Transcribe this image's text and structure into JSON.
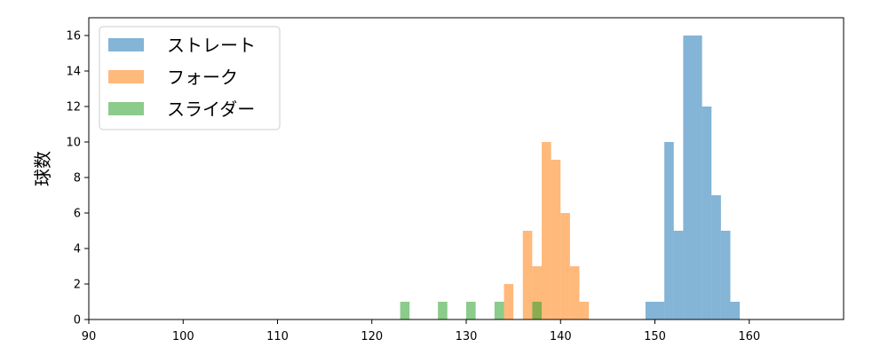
{
  "chart_data": {
    "type": "bar",
    "title": "",
    "xlabel": "",
    "ylabel": "球数",
    "xlim": [
      90,
      170
    ],
    "ylim": [
      0,
      17
    ],
    "x_ticks": [
      "90",
      "100",
      "110",
      "120",
      "130",
      "140",
      "150",
      "160"
    ],
    "y_ticks": [
      "0",
      "2",
      "4",
      "6",
      "8",
      "10",
      "12",
      "14",
      "16"
    ],
    "legend_position": "top-left",
    "grid": false,
    "bin_width": 1,
    "series": [
      {
        "name": "ストレート",
        "color": "#1f77b4",
        "bins": [
          {
            "x": 149,
            "count": 1
          },
          {
            "x": 150,
            "count": 1
          },
          {
            "x": 151,
            "count": 10
          },
          {
            "x": 152,
            "count": 5
          },
          {
            "x": 153,
            "count": 16
          },
          {
            "x": 154,
            "count": 16
          },
          {
            "x": 155,
            "count": 12
          },
          {
            "x": 156,
            "count": 7
          },
          {
            "x": 157,
            "count": 5
          },
          {
            "x": 158,
            "count": 1
          }
        ]
      },
      {
        "name": "フォーク",
        "color": "#ff7f0e",
        "bins": [
          {
            "x": 134,
            "count": 2
          },
          {
            "x": 136,
            "count": 5
          },
          {
            "x": 137,
            "count": 3
          },
          {
            "x": 138,
            "count": 10
          },
          {
            "x": 139,
            "count": 9
          },
          {
            "x": 140,
            "count": 6
          },
          {
            "x": 141,
            "count": 3
          },
          {
            "x": 142,
            "count": 1
          }
        ]
      },
      {
        "name": "スライダー",
        "color": "#2ca02c",
        "bins": [
          {
            "x": 123,
            "count": 1
          },
          {
            "x": 127,
            "count": 1
          },
          {
            "x": 130,
            "count": 1
          },
          {
            "x": 133,
            "count": 1
          },
          {
            "x": 137,
            "count": 1
          }
        ]
      }
    ]
  }
}
